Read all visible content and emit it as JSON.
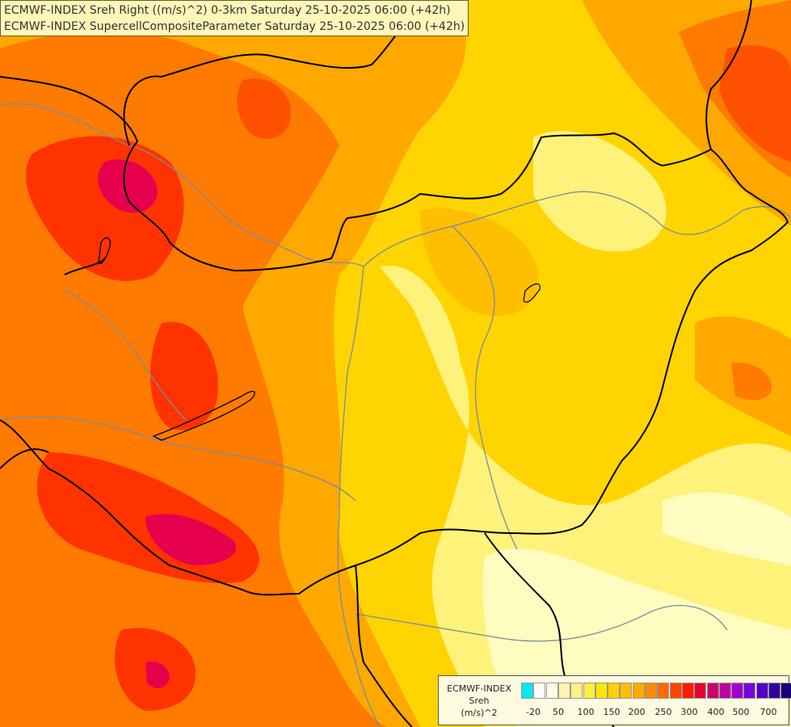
{
  "title_lines": [
    "ECMWF-INDEX Sreh Right ((m/s)^2) 0-3km Saturday 25-10-2025 06:00 (+42h)",
    "ECMWF-INDEX SupercellCompositeParameter Saturday 25-10-2025 06:00 (+42h)"
  ],
  "legend": {
    "label_lines": [
      "ECMWF-INDEX",
      "Sreh",
      "(m/s)^2"
    ],
    "colors": [
      "#00e8f0",
      "#ffffff",
      "#fffbe0",
      "#fff4b0",
      "#fff080",
      "#ffee40",
      "#ffe600",
      "#ffd200",
      "#ffbe00",
      "#ffaa00",
      "#ff8c00",
      "#ff6a00",
      "#ff4400",
      "#ff1a00",
      "#e6002e",
      "#cc0066",
      "#c000a0",
      "#a000d0",
      "#7a00e0",
      "#5500c8",
      "#3300a0",
      "#1a0078"
    ],
    "ticks": [
      "-20",
      "50",
      "100",
      "150",
      "200",
      "250",
      "300",
      "400",
      "500",
      "700"
    ]
  },
  "map": {
    "region": "Hungary and surroundings",
    "field_colors": {
      "background": "#ffd400",
      "light_yellow": "#fff27a",
      "pale": "#fffcc0",
      "orange": "#ffa800",
      "dark_orange": "#ff7a00",
      "red": "#ff3300",
      "crimson": "#e6004d"
    },
    "border_color": "#000000",
    "river_color": "#7a8ca0"
  }
}
